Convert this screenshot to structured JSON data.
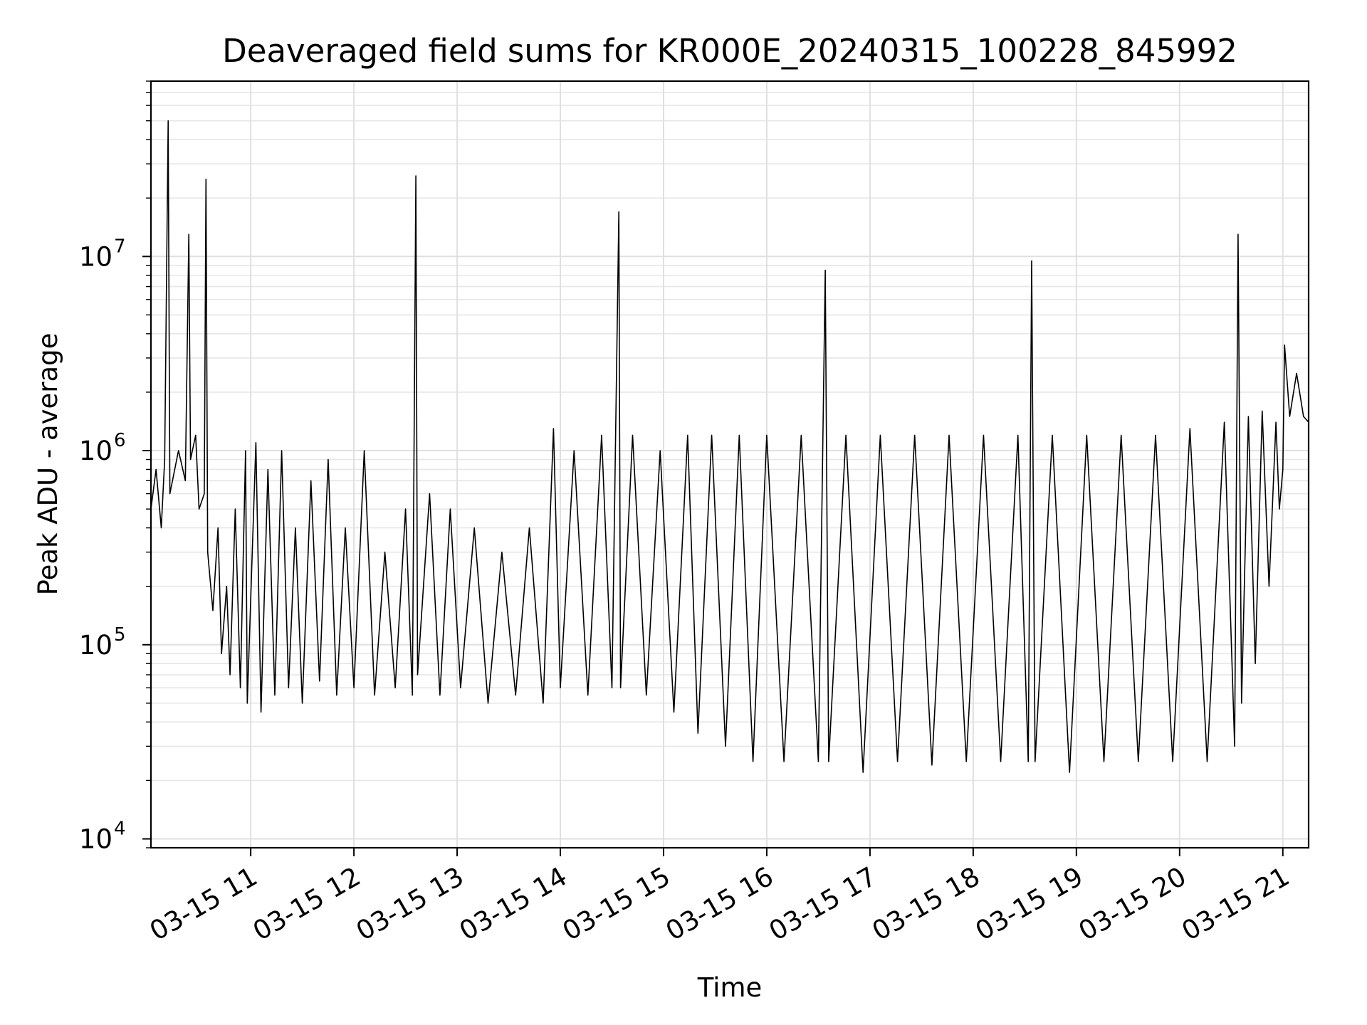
{
  "chart_data": {
    "type": "line",
    "title": "Deaveraged field sums for KR000E_20240315_100228_845992",
    "xlabel": "Time",
    "ylabel": "Peak ADU - average",
    "yscale": "log",
    "ylim": [
      9000,
      80000000
    ],
    "xlim": [
      "2024-03-15 10:02",
      "2024-03-15 21:15"
    ],
    "grid": true,
    "line_color": "#000000",
    "x_ticks": [
      {
        "t": "2024-03-15 11:00",
        "label": "03-15 11"
      },
      {
        "t": "2024-03-15 12:00",
        "label": "03-15 12"
      },
      {
        "t": "2024-03-15 13:00",
        "label": "03-15 13"
      },
      {
        "t": "2024-03-15 14:00",
        "label": "03-15 14"
      },
      {
        "t": "2024-03-15 15:00",
        "label": "03-15 15"
      },
      {
        "t": "2024-03-15 16:00",
        "label": "03-15 16"
      },
      {
        "t": "2024-03-15 17:00",
        "label": "03-15 17"
      },
      {
        "t": "2024-03-15 18:00",
        "label": "03-15 18"
      },
      {
        "t": "2024-03-15 19:00",
        "label": "03-15 19"
      },
      {
        "t": "2024-03-15 20:00",
        "label": "03-15 20"
      },
      {
        "t": "2024-03-15 21:00",
        "label": "03-15 21"
      }
    ],
    "y_ticks": [
      {
        "value": 10000,
        "base": "10",
        "exp": "4"
      },
      {
        "value": 100000,
        "base": "10",
        "exp": "5"
      },
      {
        "value": 1000000,
        "base": "10",
        "exp": "6"
      },
      {
        "value": 10000000,
        "base": "10",
        "exp": "7"
      }
    ],
    "series": [
      {
        "points": [
          [
            "2024-03-15 10:02",
            500000
          ],
          [
            "2024-03-15 10:05",
            800000
          ],
          [
            "2024-03-15 10:08",
            400000
          ],
          [
            "2024-03-15 10:10",
            900000
          ],
          [
            "2024-03-15 10:12",
            50000000
          ],
          [
            "2024-03-15 10:13",
            600000
          ],
          [
            "2024-03-15 10:18",
            1000000
          ],
          [
            "2024-03-15 10:22",
            700000
          ],
          [
            "2024-03-15 10:24",
            13000000
          ],
          [
            "2024-03-15 10:25",
            900000
          ],
          [
            "2024-03-15 10:28",
            1200000
          ],
          [
            "2024-03-15 10:30",
            500000
          ],
          [
            "2024-03-15 10:33",
            600000
          ],
          [
            "2024-03-15 10:34",
            25000000
          ],
          [
            "2024-03-15 10:35",
            300000
          ],
          [
            "2024-03-15 10:38",
            150000
          ],
          [
            "2024-03-15 10:41",
            400000
          ],
          [
            "2024-03-15 10:43",
            90000
          ],
          [
            "2024-03-15 10:46",
            200000
          ],
          [
            "2024-03-15 10:48",
            70000
          ],
          [
            "2024-03-15 10:51",
            500000
          ],
          [
            "2024-03-15 10:54",
            60000
          ],
          [
            "2024-03-15 10:57",
            1000000
          ],
          [
            "2024-03-15 10:58",
            50000
          ],
          [
            "2024-03-15 11:03",
            1100000
          ],
          [
            "2024-03-15 11:06",
            45000
          ],
          [
            "2024-03-15 11:10",
            800000
          ],
          [
            "2024-03-15 11:14",
            55000
          ],
          [
            "2024-03-15 11:18",
            1000000
          ],
          [
            "2024-03-15 11:22",
            60000
          ],
          [
            "2024-03-15 11:26",
            400000
          ],
          [
            "2024-03-15 11:30",
            50000
          ],
          [
            "2024-03-15 11:35",
            700000
          ],
          [
            "2024-03-15 11:40",
            65000
          ],
          [
            "2024-03-15 11:45",
            900000
          ],
          [
            "2024-03-15 11:50",
            55000
          ],
          [
            "2024-03-15 11:55",
            400000
          ],
          [
            "2024-03-15 12:00",
            60000
          ],
          [
            "2024-03-15 12:06",
            1000000
          ],
          [
            "2024-03-15 12:12",
            55000
          ],
          [
            "2024-03-15 12:18",
            300000
          ],
          [
            "2024-03-15 12:24",
            60000
          ],
          [
            "2024-03-15 12:30",
            500000
          ],
          [
            "2024-03-15 12:34",
            55000
          ],
          [
            "2024-03-15 12:36",
            26000000
          ],
          [
            "2024-03-15 12:37",
            70000
          ],
          [
            "2024-03-15 12:44",
            600000
          ],
          [
            "2024-03-15 12:50",
            55000
          ],
          [
            "2024-03-15 12:56",
            500000
          ],
          [
            "2024-03-15 13:02",
            60000
          ],
          [
            "2024-03-15 13:10",
            400000
          ],
          [
            "2024-03-15 13:18",
            50000
          ],
          [
            "2024-03-15 13:26",
            300000
          ],
          [
            "2024-03-15 13:34",
            55000
          ],
          [
            "2024-03-15 13:42",
            400000
          ],
          [
            "2024-03-15 13:50",
            50000
          ],
          [
            "2024-03-15 13:56",
            1300000
          ],
          [
            "2024-03-15 14:00",
            60000
          ],
          [
            "2024-03-15 14:08",
            1000000
          ],
          [
            "2024-03-15 14:16",
            55000
          ],
          [
            "2024-03-15 14:24",
            1200000
          ],
          [
            "2024-03-15 14:30",
            60000
          ],
          [
            "2024-03-15 14:34",
            17000000
          ],
          [
            "2024-03-15 14:35",
            60000
          ],
          [
            "2024-03-15 14:42",
            1200000
          ],
          [
            "2024-03-15 14:50",
            55000
          ],
          [
            "2024-03-15 14:58",
            1000000
          ],
          [
            "2024-03-15 15:06",
            45000
          ],
          [
            "2024-03-15 15:14",
            1200000
          ],
          [
            "2024-03-15 15:20",
            35000
          ],
          [
            "2024-03-15 15:28",
            1200000
          ],
          [
            "2024-03-15 15:36",
            30000
          ],
          [
            "2024-03-15 15:44",
            1200000
          ],
          [
            "2024-03-15 15:52",
            25000
          ],
          [
            "2024-03-15 16:00",
            1200000
          ],
          [
            "2024-03-15 16:10",
            25000
          ],
          [
            "2024-03-15 16:20",
            1200000
          ],
          [
            "2024-03-15 16:30",
            25000
          ],
          [
            "2024-03-15 16:34",
            8500000
          ],
          [
            "2024-03-15 16:36",
            25000
          ],
          [
            "2024-03-15 16:46",
            1200000
          ],
          [
            "2024-03-15 16:56",
            22000
          ],
          [
            "2024-03-15 17:06",
            1200000
          ],
          [
            "2024-03-15 17:16",
            25000
          ],
          [
            "2024-03-15 17:26",
            1200000
          ],
          [
            "2024-03-15 17:36",
            24000
          ],
          [
            "2024-03-15 17:46",
            1200000
          ],
          [
            "2024-03-15 17:56",
            25000
          ],
          [
            "2024-03-15 18:06",
            1200000
          ],
          [
            "2024-03-15 18:16",
            25000
          ],
          [
            "2024-03-15 18:26",
            1200000
          ],
          [
            "2024-03-15 18:32",
            25000
          ],
          [
            "2024-03-15 18:34",
            9500000
          ],
          [
            "2024-03-15 18:36",
            25000
          ],
          [
            "2024-03-15 18:46",
            1200000
          ],
          [
            "2024-03-15 18:56",
            22000
          ],
          [
            "2024-03-15 19:06",
            1200000
          ],
          [
            "2024-03-15 19:16",
            25000
          ],
          [
            "2024-03-15 19:26",
            1200000
          ],
          [
            "2024-03-15 19:36",
            25000
          ],
          [
            "2024-03-15 19:46",
            1200000
          ],
          [
            "2024-03-15 19:56",
            25000
          ],
          [
            "2024-03-15 20:06",
            1300000
          ],
          [
            "2024-03-15 20:16",
            25000
          ],
          [
            "2024-03-15 20:26",
            1400000
          ],
          [
            "2024-03-15 20:32",
            30000
          ],
          [
            "2024-03-15 20:34",
            13000000
          ],
          [
            "2024-03-15 20:36",
            50000
          ],
          [
            "2024-03-15 20:40",
            1500000
          ],
          [
            "2024-03-15 20:44",
            80000
          ],
          [
            "2024-03-15 20:48",
            1600000
          ],
          [
            "2024-03-15 20:52",
            200000
          ],
          [
            "2024-03-15 20:56",
            1400000
          ],
          [
            "2024-03-15 20:58",
            500000
          ],
          [
            "2024-03-15 21:00",
            800000
          ],
          [
            "2024-03-15 21:01",
            3500000
          ],
          [
            "2024-03-15 21:04",
            1500000
          ],
          [
            "2024-03-15 21:08",
            2500000
          ],
          [
            "2024-03-15 21:12",
            1500000
          ],
          [
            "2024-03-15 21:15",
            1400000
          ]
        ]
      }
    ]
  }
}
